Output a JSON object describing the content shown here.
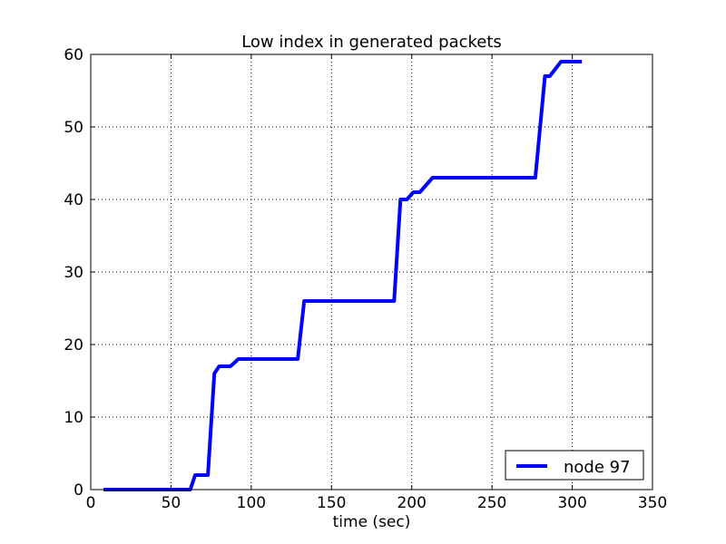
{
  "chart_data": {
    "type": "line",
    "title": "Low index in generated packets",
    "xlabel": "time (sec)",
    "ylabel": "",
    "xlim": [
      0,
      350
    ],
    "ylim": [
      0,
      60
    ],
    "xticks": [
      0,
      50,
      100,
      150,
      200,
      250,
      300,
      350
    ],
    "yticks": [
      0,
      10,
      20,
      30,
      40,
      50,
      60
    ],
    "grid": true,
    "legend_position": "lower-right",
    "series": [
      {
        "name": "node 97",
        "color": "#0000ff",
        "points": [
          [
            8,
            0
          ],
          [
            62,
            0
          ],
          [
            65,
            2
          ],
          [
            73,
            2
          ],
          [
            77,
            16
          ],
          [
            80,
            17
          ],
          [
            87,
            17
          ],
          [
            92,
            18
          ],
          [
            129,
            18
          ],
          [
            133,
            26
          ],
          [
            189,
            26
          ],
          [
            193,
            40
          ],
          [
            197,
            40
          ],
          [
            201,
            41
          ],
          [
            205,
            41
          ],
          [
            213,
            43
          ],
          [
            277,
            43
          ],
          [
            283,
            57
          ],
          [
            286,
            57
          ],
          [
            293,
            59
          ],
          [
            306,
            59
          ]
        ]
      }
    ]
  }
}
